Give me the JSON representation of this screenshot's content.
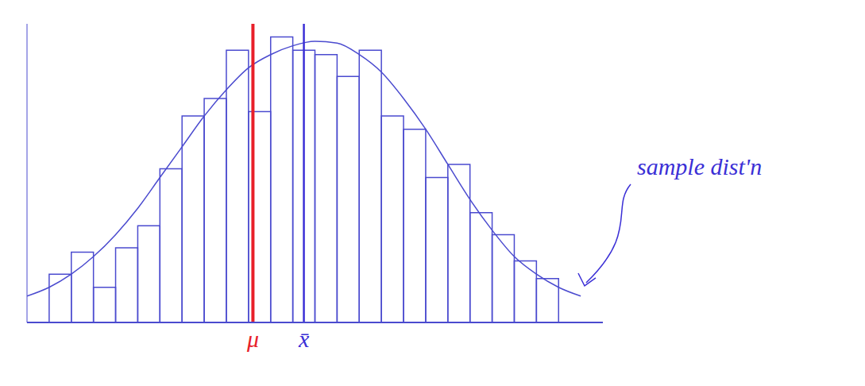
{
  "chart_data": {
    "type": "histogram",
    "bins": [
      1,
      2,
      3,
      4,
      5,
      6,
      7,
      8,
      9,
      10,
      11,
      12,
      13,
      14,
      15,
      16,
      17,
      18,
      19,
      20,
      21,
      22,
      23,
      24
    ],
    "counts": [
      55,
      80,
      40,
      85,
      110,
      175,
      235,
      255,
      310,
      240,
      325,
      310,
      305,
      280,
      310,
      235,
      220,
      165,
      180,
      125,
      100,
      70,
      50
    ],
    "color": "#4b4bcf",
    "xlim": [
      0,
      26
    ],
    "ylim": [
      0,
      340
    ],
    "tick_labels": false,
    "grid": false,
    "curve": {
      "x": [
        0,
        1,
        2,
        3,
        4,
        5,
        6,
        7,
        8,
        9,
        10,
        11,
        12,
        13,
        14,
        15,
        16,
        17,
        18,
        19,
        20,
        21,
        22,
        23,
        24,
        25
      ],
      "y": [
        30,
        40,
        55,
        75,
        100,
        130,
        165,
        200,
        235,
        265,
        290,
        305,
        315,
        320,
        318,
        305,
        285,
        255,
        220,
        180,
        140,
        105,
        75,
        55,
        40,
        30
      ],
      "color": "#4b4bcf",
      "line_style": "solid"
    },
    "vlines": [
      {
        "x": 10.2,
        "label": "μ",
        "color": "#e8202a"
      },
      {
        "x": 12.5,
        "label": "x̄",
        "color": "#3b2fd6"
      }
    ],
    "annotations": [
      {
        "text": "sample dist'n",
        "x": 24.6,
        "y": 38,
        "color": "#3b2fd6"
      }
    ]
  }
}
